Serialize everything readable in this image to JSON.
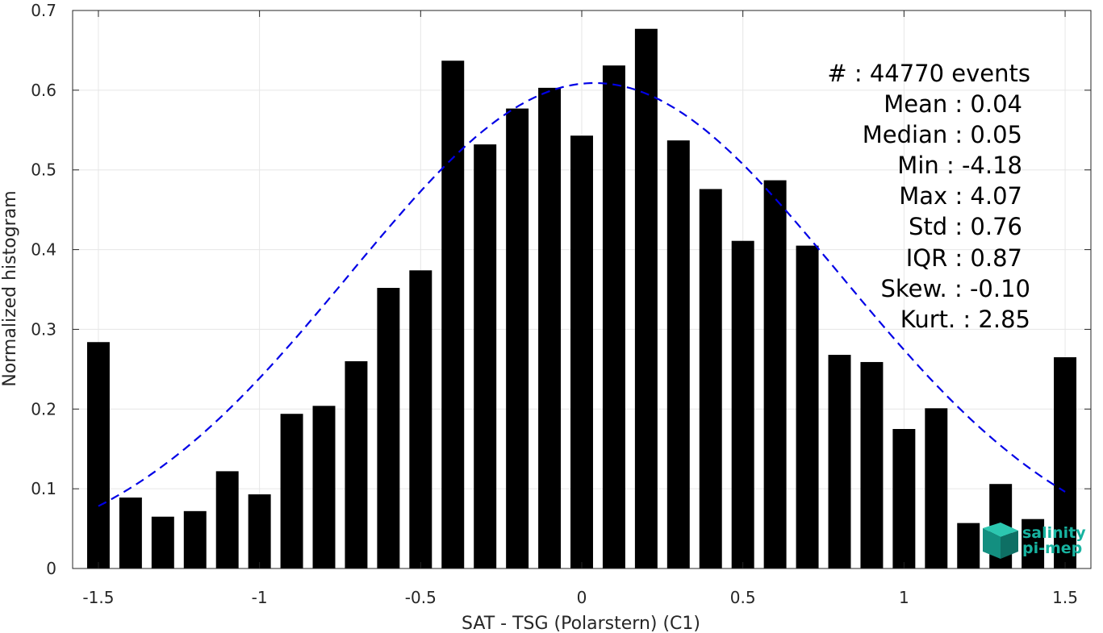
{
  "chart_data": {
    "type": "bar",
    "xlabel": "SAT - TSG (Polarstern) (C1)",
    "ylabel": "Normalized histogram",
    "xlim": [
      -1.58,
      1.58
    ],
    "ylim": [
      0,
      0.7
    ],
    "xticks": [
      "-1.5",
      "-1",
      "-0.5",
      "0",
      "0.5",
      "1",
      "1.5"
    ],
    "xtick_values": [
      -1.5,
      -1,
      -0.5,
      0,
      0.5,
      1,
      1.5
    ],
    "yticks": [
      "0",
      "0.1",
      "0.2",
      "0.3",
      "0.4",
      "0.5",
      "0.6",
      "0.7"
    ],
    "ytick_values": [
      0,
      0.1,
      0.2,
      0.3,
      0.4,
      0.5,
      0.6,
      0.7
    ],
    "grid": true,
    "bar_width": 0.07,
    "bar_color": "#000000",
    "bins_x": [
      -1.5,
      -1.4,
      -1.3,
      -1.2,
      -1.1,
      -1.0,
      -0.9,
      -0.8,
      -0.7,
      -0.6,
      -0.5,
      -0.4,
      -0.3,
      -0.2,
      -0.1,
      0.0,
      0.1,
      0.2,
      0.3,
      0.4,
      0.5,
      0.6,
      0.7,
      0.8,
      0.9,
      1.0,
      1.1,
      1.2,
      1.3,
      1.4,
      1.5
    ],
    "values": [
      0.284,
      0.089,
      0.065,
      0.072,
      0.122,
      0.093,
      0.194,
      0.204,
      0.26,
      0.352,
      0.374,
      0.637,
      0.532,
      0.577,
      0.603,
      0.543,
      0.631,
      0.677,
      0.537,
      0.476,
      0.411,
      0.487,
      0.405,
      0.268,
      0.259,
      0.175,
      0.201,
      0.057,
      0.106,
      0.062,
      0.265
    ],
    "fit": {
      "name": "gaussian-fit",
      "color": "#0000e6",
      "style": "dashed",
      "mean": 0.04,
      "std": 0.76,
      "x_range": [
        -1.5,
        1.5
      ]
    },
    "annotation_lines": [
      "#  : 44770 events",
      "Mean : 0.04",
      "Median : 0.05",
      "Min : -4.18",
      "Max : 4.07",
      "Std : 0.76",
      "IQR : 0.87",
      "Skew. : -0.10",
      "Kurt. : 2.85"
    ]
  },
  "logo": {
    "line1": "salinity",
    "line2": "pi-mep",
    "color": "#17b3a0"
  }
}
